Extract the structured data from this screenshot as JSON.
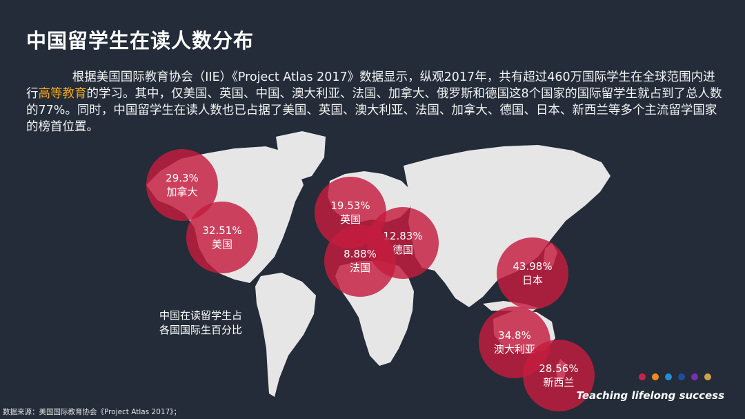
{
  "slide": {
    "title": "中国留学生在读人数分布",
    "paragraph": {
      "before": "根据美国国际教育协会（IIE）《Project Atlas 2017》数据显示，纵观2017年，共有超过460万国际学生在全球范围内进行",
      "highlight": "高等教育",
      "after": "的学习。其中，仅美国、英国、中国、澳大利亚、法国、加拿大、俄罗斯和德国这8个国家的国际留学生就占到了总人数的77%。同时，中国留学生在读人数也已占据了美国、英国、澳大利亚、法国、加拿大、德国、日本、新西兰等多个主流留学国家的榜首位置。"
    },
    "bubbles": [
      {
        "country": "加拿大",
        "value": "29.3%"
      },
      {
        "country": "美国",
        "value": "32.51%"
      },
      {
        "country": "英国",
        "value": "19.53%"
      },
      {
        "country": "德国",
        "value": "12.83%"
      },
      {
        "country": "法国",
        "value": "8.88%"
      },
      {
        "country": "日本",
        "value": "43.98%"
      },
      {
        "country": "澳大利亚",
        "value": "34.8%"
      },
      {
        "country": "新西兰",
        "value": "28.56%"
      }
    ],
    "caption_line1": "中国在读留学生占",
    "caption_line2": "各国国际生百分比",
    "source": "数据来源：美国国际教育协会《Project Atlas 2017》；",
    "tagline": "Teaching lifelong success",
    "colors": {
      "background": "#232c38",
      "bubble": "#c41c3e",
      "highlight": "#f4a81b",
      "map_land": "#e6e6e6",
      "dots": [
        "#c8234a",
        "#f08a1e",
        "#1e8fd6",
        "#1a4fa0",
        "#7a2fb0",
        "#cfa24a"
      ]
    }
  }
}
